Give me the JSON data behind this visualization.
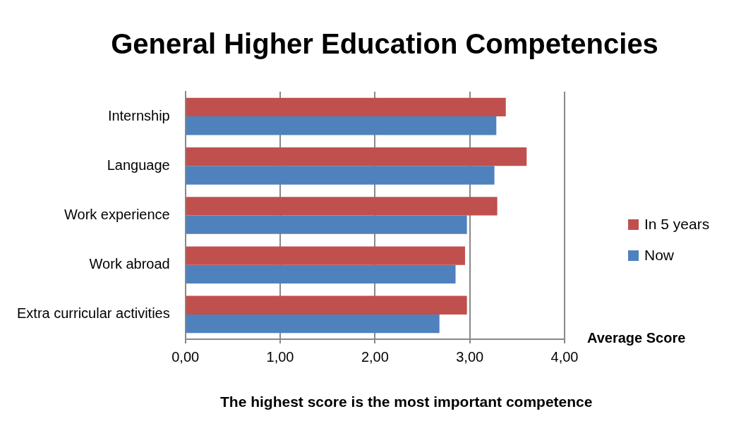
{
  "chart_data": {
    "type": "bar",
    "orientation": "horizontal",
    "title": "General Higher Education Competencies",
    "xlabel": "Average Score",
    "annotations": [
      "The highest score is the most important competence"
    ],
    "categories": [
      "Internship",
      "Language",
      "Work experience",
      "Work abroad",
      "Extra curricular activities"
    ],
    "series": [
      {
        "name": "In 5 years",
        "color": "#c0504d",
        "values": [
          3.38,
          3.6,
          3.29,
          2.95,
          2.97
        ]
      },
      {
        "name": "Now",
        "color": "#4f81bd",
        "values": [
          3.28,
          3.26,
          2.97,
          2.85,
          2.68
        ]
      }
    ],
    "xlim": [
      0,
      4
    ],
    "xticks": [
      {
        "value": 0,
        "label": "0,00"
      },
      {
        "value": 1,
        "label": "1,00"
      },
      {
        "value": 2,
        "label": "2,00"
      },
      {
        "value": 3,
        "label": "3,00"
      },
      {
        "value": 4,
        "label": "4,00"
      }
    ],
    "grid": "x",
    "legend": "right"
  }
}
